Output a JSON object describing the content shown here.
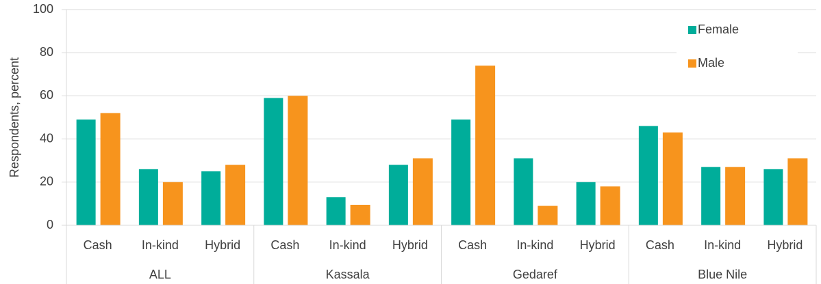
{
  "chart_data": {
    "type": "bar",
    "ylabel": "Respondents, percent",
    "categories": [
      "Cash",
      "In-kind",
      "Hybrid",
      "Cash",
      "In-kind",
      "Hybrid",
      "Cash",
      "In-kind",
      "Hybrid",
      "Cash",
      "In-kind",
      "Hybrid"
    ],
    "groups": [
      "ALL",
      "Kassala",
      "Gedaref",
      "Blue Nile"
    ],
    "series": [
      {
        "name": "Female",
        "color": "#00ad9a",
        "values": [
          49,
          26,
          25,
          59,
          13,
          28,
          49,
          31,
          20,
          46,
          27,
          26
        ]
      },
      {
        "name": "Male",
        "color": "#f7941d",
        "values": [
          52,
          20,
          28,
          60,
          9.5,
          31,
          74,
          9,
          18,
          43,
          27,
          31
        ]
      }
    ],
    "ylim": [
      0,
      100
    ],
    "yticks": [
      0,
      20,
      40,
      60,
      80,
      100
    ],
    "grid": true,
    "legend": "top-right"
  }
}
